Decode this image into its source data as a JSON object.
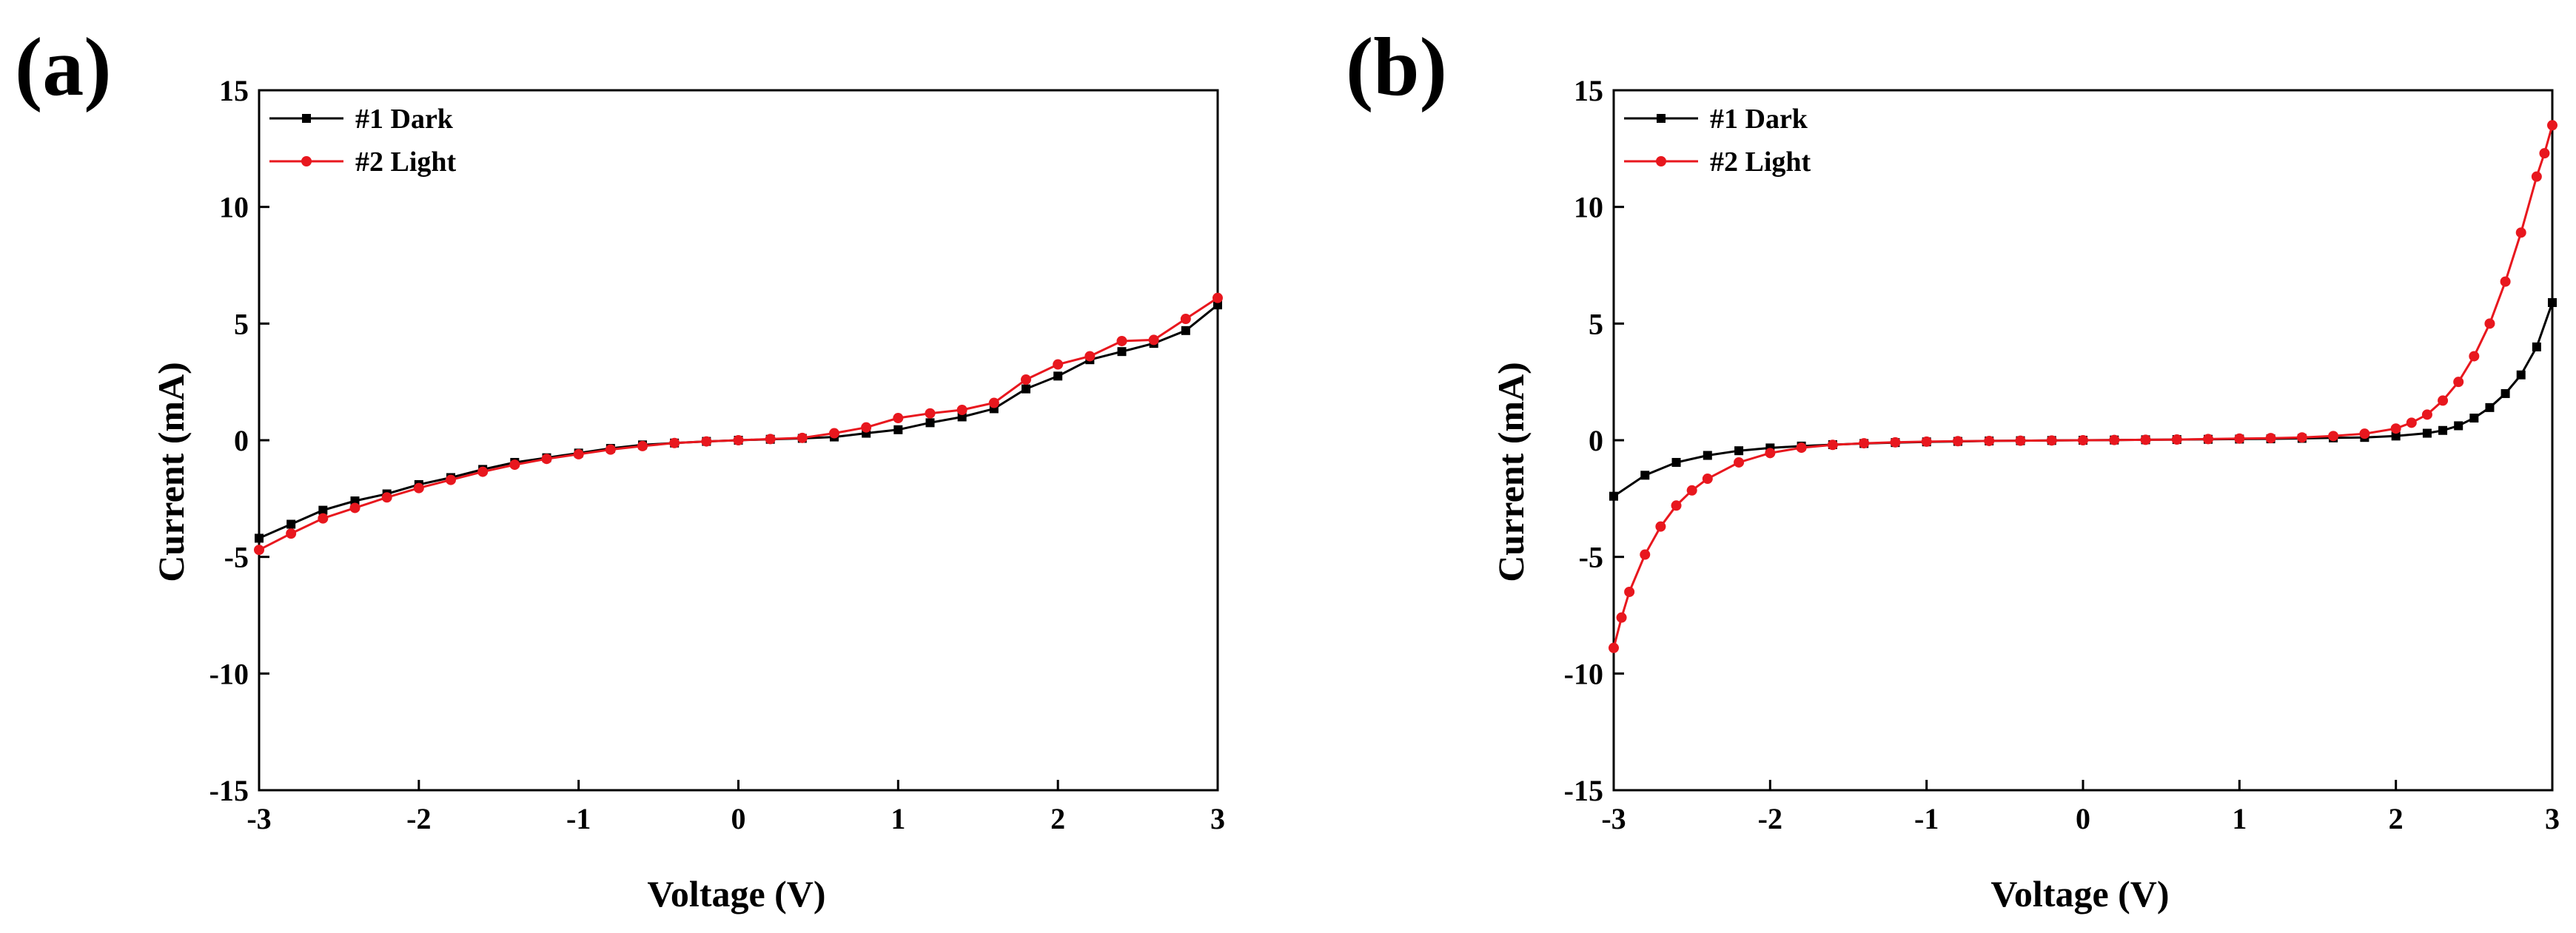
{
  "chart_data": [
    {
      "type": "line",
      "panel_label": "(a)",
      "xlabel": "Voltage (V)",
      "ylabel": "Current (mA)",
      "xlim": [
        -3,
        3
      ],
      "ylim": [
        -15,
        15
      ],
      "xticks": [
        -3,
        -2,
        -1,
        0,
        1,
        2,
        3
      ],
      "yticks": [
        -15,
        -10,
        -5,
        0,
        5,
        10,
        15
      ],
      "grid": false,
      "legend_position": "top-left",
      "series": [
        {
          "name": "#1 Dark",
          "color": "#000000",
          "marker": "square",
          "x": [
            -3,
            -2.8,
            -2.6,
            -2.4,
            -2.2,
            -2,
            -1.8,
            -1.6,
            -1.4,
            -1.2,
            -1,
            -0.8,
            -0.6,
            -0.4,
            -0.2,
            0,
            0.2,
            0.4,
            0.6,
            0.8,
            1,
            1.2,
            1.4,
            1.6,
            1.8,
            2,
            2.2,
            2.4,
            2.6,
            2.8,
            3
          ],
          "y": [
            -4.2,
            -3.6,
            -3.0,
            -2.6,
            -2.3,
            -1.9,
            -1.6,
            -1.25,
            -0.95,
            -0.75,
            -0.55,
            -0.35,
            -0.2,
            -0.12,
            -0.05,
            0,
            0.04,
            0.08,
            0.14,
            0.3,
            0.45,
            0.75,
            1.0,
            1.35,
            2.2,
            2.75,
            3.45,
            3.8,
            4.15,
            4.7,
            5.8
          ]
        },
        {
          "name": "#2 Light",
          "color": "#e8171e",
          "marker": "circle",
          "x": [
            -3,
            -2.8,
            -2.6,
            -2.4,
            -2.2,
            -2,
            -1.8,
            -1.6,
            -1.4,
            -1.2,
            -1,
            -0.8,
            -0.6,
            -0.4,
            -0.2,
            0,
            0.2,
            0.4,
            0.6,
            0.8,
            1,
            1.2,
            1.4,
            1.6,
            1.8,
            2,
            2.2,
            2.4,
            2.6,
            2.8,
            3
          ],
          "y": [
            -4.7,
            -4.0,
            -3.35,
            -2.9,
            -2.45,
            -2.05,
            -1.7,
            -1.35,
            -1.05,
            -0.8,
            -0.6,
            -0.4,
            -0.25,
            -0.12,
            -0.05,
            0,
            0.05,
            0.1,
            0.3,
            0.55,
            0.95,
            1.15,
            1.3,
            1.6,
            2.6,
            3.25,
            3.6,
            4.25,
            4.3,
            5.2,
            6.1
          ]
        }
      ]
    },
    {
      "type": "line",
      "panel_label": "(b)",
      "xlabel": "Voltage (V)",
      "ylabel": "Current (mA)",
      "xlim": [
        -3,
        3
      ],
      "ylim": [
        -15,
        15
      ],
      "xticks": [
        -3,
        -2,
        -1,
        0,
        1,
        2,
        3
      ],
      "yticks": [
        -15,
        -10,
        -5,
        0,
        5,
        10,
        15
      ],
      "grid": false,
      "legend_position": "top-left",
      "series": [
        {
          "name": "#1 Dark",
          "color": "#000000",
          "marker": "square",
          "x": [
            -3,
            -2.8,
            -2.6,
            -2.4,
            -2.2,
            -2,
            -1.8,
            -1.6,
            -1.4,
            -1.2,
            -1,
            -0.8,
            -0.6,
            -0.4,
            -0.2,
            0,
            0.2,
            0.4,
            0.6,
            0.8,
            1,
            1.2,
            1.4,
            1.6,
            1.8,
            2,
            2.2,
            2.3,
            2.4,
            2.5,
            2.6,
            2.7,
            2.8,
            2.9,
            3
          ],
          "y": [
            -2.4,
            -1.5,
            -0.95,
            -0.65,
            -0.45,
            -0.33,
            -0.25,
            -0.19,
            -0.14,
            -0.1,
            -0.07,
            -0.05,
            -0.03,
            -0.02,
            -0.01,
            0,
            0.01,
            0.02,
            0.03,
            0.04,
            0.05,
            0.06,
            0.08,
            0.1,
            0.12,
            0.18,
            0.3,
            0.42,
            0.62,
            0.95,
            1.4,
            2.0,
            2.8,
            4.0,
            5.9
          ]
        },
        {
          "name": "#2 Light",
          "color": "#e8171e",
          "marker": "circle",
          "x": [
            -3,
            -2.95,
            -2.9,
            -2.8,
            -2.7,
            -2.6,
            -2.5,
            -2.4,
            -2.2,
            -2,
            -1.8,
            -1.6,
            -1.4,
            -1.2,
            -1,
            -0.8,
            -0.6,
            -0.4,
            -0.2,
            0,
            0.2,
            0.4,
            0.6,
            0.8,
            1,
            1.2,
            1.4,
            1.6,
            1.8,
            2,
            2.1,
            2.2,
            2.3,
            2.4,
            2.5,
            2.6,
            2.7,
            2.8,
            2.9,
            2.95,
            3
          ],
          "y": [
            -8.9,
            -7.6,
            -6.5,
            -4.9,
            -3.7,
            -2.8,
            -2.15,
            -1.65,
            -0.95,
            -0.55,
            -0.32,
            -0.2,
            -0.13,
            -0.09,
            -0.06,
            -0.04,
            -0.03,
            -0.02,
            -0.01,
            0,
            0.01,
            0.02,
            0.03,
            0.05,
            0.07,
            0.09,
            0.12,
            0.18,
            0.28,
            0.5,
            0.75,
            1.1,
            1.7,
            2.5,
            3.6,
            5.0,
            6.8,
            8.9,
            11.3,
            12.3,
            13.5
          ]
        }
      ]
    }
  ]
}
